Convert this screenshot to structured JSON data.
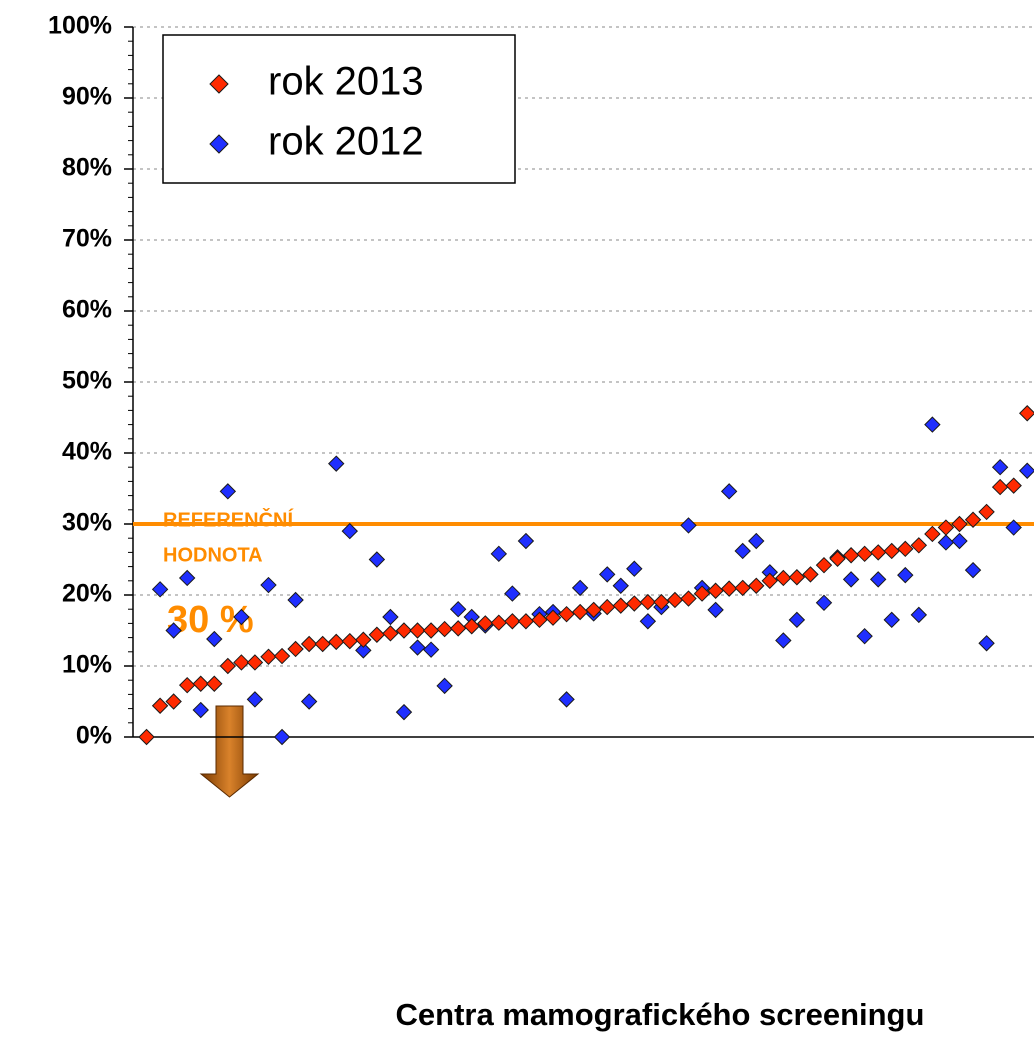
{
  "chart_data": {
    "type": "scatter",
    "x_label": "Centra mamografického screeningu",
    "categories": [
      null,
      null,
      null,
      null,
      null,
      null,
      null,
      null,
      null,
      null,
      null,
      null,
      null,
      null,
      null,
      null,
      null,
      null,
      null,
      null,
      null,
      null,
      null,
      null,
      null,
      null,
      null,
      null,
      null,
      null,
      null,
      null,
      null,
      null,
      null,
      null,
      null,
      null,
      null,
      null,
      null,
      null,
      null,
      null,
      null,
      null,
      null,
      null,
      null,
      null,
      null,
      null,
      null,
      null,
      null,
      null,
      null,
      null,
      null,
      null,
      null,
      null,
      null,
      null,
      null,
      null
    ],
    "series": [
      {
        "name": "rok 2013",
        "color": "#ff2a00",
        "values": [
          0,
          4.4,
          5,
          7.3,
          7.5,
          7.5,
          10,
          10.5,
          10.5,
          11.3,
          11.4,
          12.4,
          13.1,
          13.1,
          13.4,
          13.5,
          13.7,
          14.4,
          14.6,
          15,
          15,
          15,
          15.2,
          15.3,
          15.6,
          16,
          16.1,
          16.3,
          16.3,
          16.5,
          16.8,
          17.3,
          17.6,
          17.9,
          18.3,
          18.5,
          18.8,
          19,
          19,
          19.3,
          19.5,
          20.2,
          20.6,
          20.9,
          21,
          21.3,
          22,
          22.4,
          22.5,
          22.9,
          24.2,
          25.1,
          25.6,
          25.8,
          26,
          26.2,
          26.5,
          27,
          28.6,
          29.5,
          30,
          30.6,
          31.7,
          35.2,
          35.4,
          45.6
        ]
      },
      {
        "name": "rok 2012",
        "color": "#1f2fff",
        "values": [
          null,
          20.8,
          15,
          22.4,
          3.8,
          13.8,
          34.6,
          16.9,
          5.3,
          21.4,
          0,
          19.3,
          5,
          null,
          38.5,
          29,
          12.2,
          25,
          16.9,
          3.5,
          12.6,
          12.3,
          7.2,
          18,
          16.9,
          15.7,
          25.8,
          20.2,
          27.6,
          17.3,
          17.6,
          5.3,
          21,
          17.4,
          22.9,
          21.3,
          23.7,
          16.3,
          18.3,
          null,
          29.8,
          21,
          17.9,
          34.6,
          26.2,
          27.6,
          23.2,
          13.6,
          16.5,
          null,
          18.9,
          25.3,
          22.2,
          14.2,
          22.2,
          16.5,
          22.8,
          17.2,
          44,
          27.4,
          27.6,
          23.5,
          13.2,
          38,
          29.5,
          37.5
        ]
      }
    ],
    "ylim": [
      0,
      100
    ],
    "yticks": [
      {
        "value": 0,
        "label": "0%"
      },
      {
        "value": 10,
        "label": "10%"
      },
      {
        "value": 20,
        "label": "20%"
      },
      {
        "value": 30,
        "label": "30%"
      },
      {
        "value": 40,
        "label": "40%"
      },
      {
        "value": 50,
        "label": "50%"
      },
      {
        "value": 60,
        "label": "60%"
      },
      {
        "value": 70,
        "label": "70%"
      },
      {
        "value": 80,
        "label": "80%"
      },
      {
        "value": 90,
        "label": "90%"
      },
      {
        "value": 100,
        "label": "100%"
      }
    ],
    "grid": true,
    "legend": "top-left",
    "reference_line": {
      "value": 30,
      "label": "30 %",
      "color": "#ff8c00",
      "text_lines": [
        "REFERENČNÍ",
        "HODNOTA"
      ]
    }
  }
}
